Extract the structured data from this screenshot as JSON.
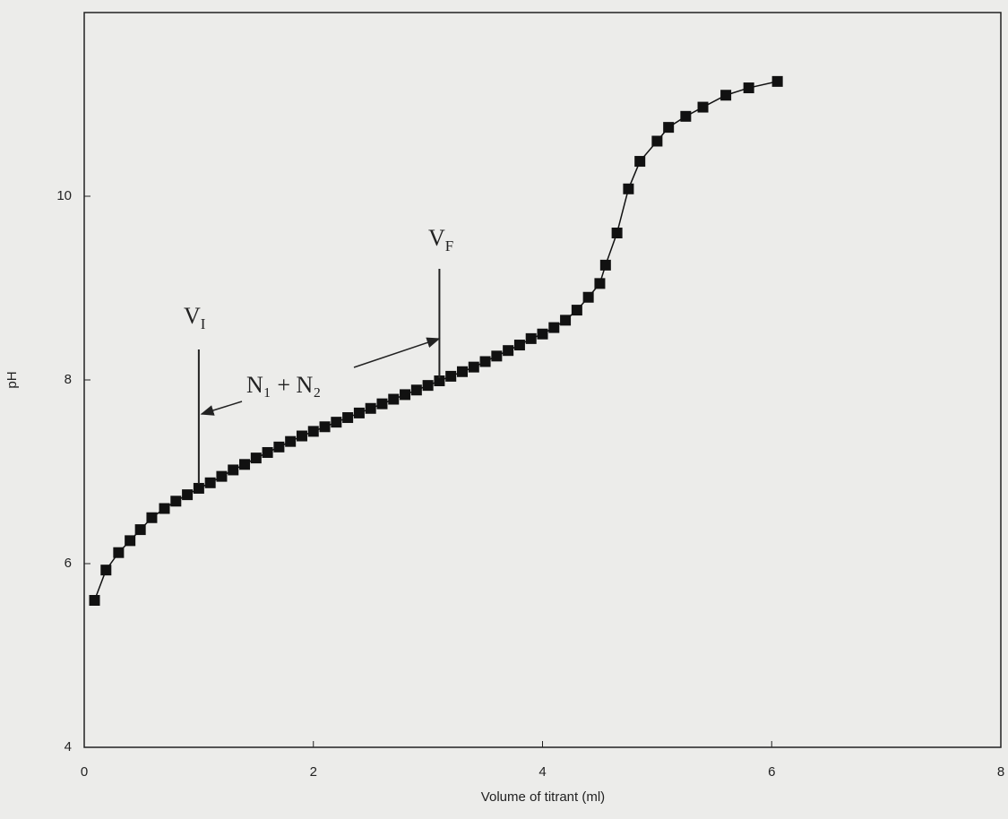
{
  "chart_data": {
    "type": "line",
    "x_label": "Volume of titrant (ml)",
    "y_label": "pH",
    "xlim": [
      0,
      8
    ],
    "xticks": [
      0,
      2,
      4,
      6,
      8
    ],
    "ylim": [
      4,
      12
    ],
    "yticks": [
      4,
      6,
      8,
      10
    ],
    "marker": "square",
    "series": [
      {
        "color": "#111111",
        "x": [
          0.09,
          0.19,
          0.3,
          0.4,
          0.49,
          0.59,
          0.7,
          0.8,
          0.9,
          1.0,
          1.1,
          1.2,
          1.3,
          1.4,
          1.5,
          1.6,
          1.7,
          1.8,
          1.9,
          2.0,
          2.1,
          2.2,
          2.3,
          2.4,
          2.5,
          2.6,
          2.7,
          2.8,
          2.9,
          3.0,
          3.1,
          3.2,
          3.3,
          3.4,
          3.5,
          3.6,
          3.7,
          3.8,
          3.9,
          4.0,
          4.1,
          4.2,
          4.3,
          4.4,
          4.5,
          4.55,
          4.65,
          4.75,
          4.85,
          5.0,
          5.1,
          5.25,
          5.4,
          5.6,
          5.8,
          6.05
        ],
        "values": [
          5.6,
          5.93,
          6.12,
          6.25,
          6.37,
          6.5,
          6.6,
          6.68,
          6.75,
          6.82,
          6.88,
          6.95,
          7.02,
          7.08,
          7.15,
          7.21,
          7.27,
          7.33,
          7.39,
          7.44,
          7.49,
          7.54,
          7.59,
          7.64,
          7.69,
          7.74,
          7.79,
          7.84,
          7.89,
          7.94,
          7.99,
          8.04,
          8.09,
          8.14,
          8.2,
          8.26,
          8.32,
          8.38,
          8.45,
          8.5,
          8.57,
          8.65,
          8.76,
          8.9,
          9.05,
          9.25,
          9.6,
          10.08,
          10.38,
          10.6,
          10.75,
          10.87,
          10.97,
          11.1,
          11.18,
          11.25
        ]
      }
    ],
    "annotations": [
      {
        "text": "V",
        "subscript": "I",
        "x": 1.0
      },
      {
        "text": "V",
        "subscript": "F",
        "x": 3.1
      },
      {
        "text": "N₁ + N₂"
      }
    ]
  }
}
